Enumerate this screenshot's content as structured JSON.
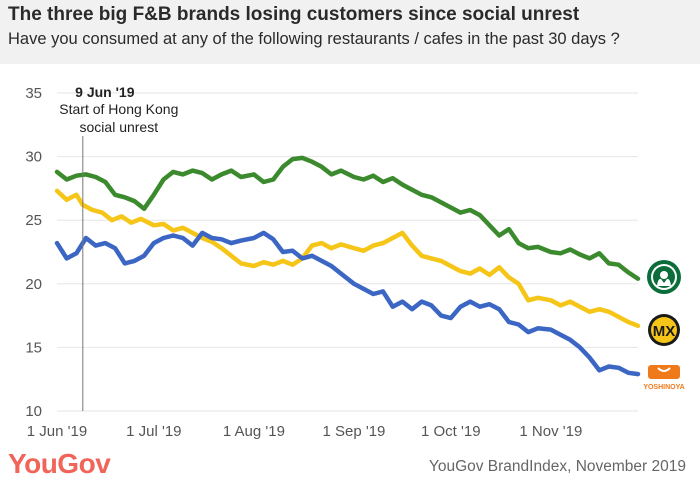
{
  "header": {
    "title": "The three big F&B brands losing customers since social unrest",
    "subtitle": "Have you consumed at any of the following restaurants / cafes in the past 30 days ?"
  },
  "footer": {
    "logo": "YouGov",
    "source": "YouGov BrandIndex, November 2019"
  },
  "annotation": {
    "date": "9 Jun '19",
    "line1": "Start of Hong Kong",
    "line2": "social unrest",
    "x": "2019-06-09"
  },
  "chart_data": {
    "type": "line",
    "title": "",
    "xlabel": "",
    "ylabel": "",
    "ylim": [
      10,
      35
    ],
    "yticks": [
      10,
      15,
      20,
      25,
      30,
      35
    ],
    "xlim": [
      "2019-06-01",
      "2019-11-28"
    ],
    "xticks": [
      {
        "date": "2019-06-01",
        "label": "1 Jun '19"
      },
      {
        "date": "2019-07-01",
        "label": "1 Jul '19"
      },
      {
        "date": "2019-08-01",
        "label": "1 Aug '19"
      },
      {
        "date": "2019-09-01",
        "label": "1 Sep '19"
      },
      {
        "date": "2019-10-01",
        "label": "1 Oct '19"
      },
      {
        "date": "2019-11-01",
        "label": "1 Nov '19"
      }
    ],
    "grid": "horizontal",
    "series": [
      {
        "brand_icon": "starbucks-logo-icon",
        "color": "#3c8a2e",
        "points": [
          [
            "2019-06-01",
            28.8
          ],
          [
            "2019-06-04",
            28.2
          ],
          [
            "2019-06-07",
            28.5
          ],
          [
            "2019-06-10",
            28.6
          ],
          [
            "2019-06-13",
            28.4
          ],
          [
            "2019-06-16",
            28.0
          ],
          [
            "2019-06-19",
            27.0
          ],
          [
            "2019-06-22",
            26.8
          ],
          [
            "2019-06-25",
            26.5
          ],
          [
            "2019-06-28",
            25.9
          ],
          [
            "2019-07-01",
            27.0
          ],
          [
            "2019-07-04",
            28.2
          ],
          [
            "2019-07-07",
            28.8
          ],
          [
            "2019-07-10",
            28.6
          ],
          [
            "2019-07-13",
            28.9
          ],
          [
            "2019-07-16",
            28.7
          ],
          [
            "2019-07-19",
            28.2
          ],
          [
            "2019-07-22",
            28.6
          ],
          [
            "2019-07-25",
            28.9
          ],
          [
            "2019-07-28",
            28.4
          ],
          [
            "2019-08-01",
            28.6
          ],
          [
            "2019-08-04",
            28.0
          ],
          [
            "2019-08-07",
            28.2
          ],
          [
            "2019-08-10",
            29.2
          ],
          [
            "2019-08-13",
            29.8
          ],
          [
            "2019-08-16",
            29.9
          ],
          [
            "2019-08-19",
            29.6
          ],
          [
            "2019-08-22",
            29.2
          ],
          [
            "2019-08-25",
            28.6
          ],
          [
            "2019-08-28",
            28.9
          ],
          [
            "2019-09-01",
            28.4
          ],
          [
            "2019-09-04",
            28.2
          ],
          [
            "2019-09-07",
            28.5
          ],
          [
            "2019-09-10",
            28.0
          ],
          [
            "2019-09-13",
            28.3
          ],
          [
            "2019-09-16",
            27.8
          ],
          [
            "2019-09-19",
            27.4
          ],
          [
            "2019-09-22",
            27.0
          ],
          [
            "2019-09-25",
            26.8
          ],
          [
            "2019-09-28",
            26.4
          ],
          [
            "2019-10-01",
            26.0
          ],
          [
            "2019-10-04",
            25.6
          ],
          [
            "2019-10-07",
            25.8
          ],
          [
            "2019-10-10",
            25.4
          ],
          [
            "2019-10-13",
            24.6
          ],
          [
            "2019-10-16",
            23.8
          ],
          [
            "2019-10-19",
            24.3
          ],
          [
            "2019-10-22",
            23.2
          ],
          [
            "2019-10-25",
            22.8
          ],
          [
            "2019-10-28",
            22.9
          ],
          [
            "2019-11-01",
            22.5
          ],
          [
            "2019-11-04",
            22.4
          ],
          [
            "2019-11-07",
            22.7
          ],
          [
            "2019-11-10",
            22.3
          ],
          [
            "2019-11-13",
            22.0
          ],
          [
            "2019-11-16",
            22.4
          ],
          [
            "2019-11-19",
            21.6
          ],
          [
            "2019-11-22",
            21.5
          ],
          [
            "2019-11-25",
            20.9
          ],
          [
            "2019-11-28",
            20.4
          ]
        ]
      },
      {
        "brand_icon": "mx-logo-icon",
        "color": "#f5c518",
        "points": [
          [
            "2019-06-01",
            27.3
          ],
          [
            "2019-06-04",
            26.6
          ],
          [
            "2019-06-07",
            27.0
          ],
          [
            "2019-06-09",
            26.2
          ],
          [
            "2019-06-12",
            25.8
          ],
          [
            "2019-06-15",
            25.6
          ],
          [
            "2019-06-18",
            25.0
          ],
          [
            "2019-06-21",
            25.3
          ],
          [
            "2019-06-24",
            24.8
          ],
          [
            "2019-06-27",
            25.1
          ],
          [
            "2019-07-01",
            24.6
          ],
          [
            "2019-07-04",
            24.7
          ],
          [
            "2019-07-07",
            24.2
          ],
          [
            "2019-07-10",
            24.4
          ],
          [
            "2019-07-13",
            24.0
          ],
          [
            "2019-07-16",
            23.6
          ],
          [
            "2019-07-19",
            23.3
          ],
          [
            "2019-07-22",
            22.8
          ],
          [
            "2019-07-25",
            22.2
          ],
          [
            "2019-07-28",
            21.6
          ],
          [
            "2019-08-01",
            21.4
          ],
          [
            "2019-08-04",
            21.7
          ],
          [
            "2019-08-07",
            21.5
          ],
          [
            "2019-08-10",
            21.8
          ],
          [
            "2019-08-13",
            21.5
          ],
          [
            "2019-08-16",
            22.0
          ],
          [
            "2019-08-19",
            23.0
          ],
          [
            "2019-08-22",
            23.2
          ],
          [
            "2019-08-25",
            22.8
          ],
          [
            "2019-08-28",
            23.1
          ],
          [
            "2019-09-01",
            22.8
          ],
          [
            "2019-09-04",
            22.6
          ],
          [
            "2019-09-07",
            23.0
          ],
          [
            "2019-09-10",
            23.2
          ],
          [
            "2019-09-13",
            23.6
          ],
          [
            "2019-09-16",
            24.0
          ],
          [
            "2019-09-19",
            23.0
          ],
          [
            "2019-09-22",
            22.2
          ],
          [
            "2019-09-25",
            22.0
          ],
          [
            "2019-09-28",
            21.8
          ],
          [
            "2019-10-01",
            21.4
          ],
          [
            "2019-10-04",
            21.0
          ],
          [
            "2019-10-07",
            20.8
          ],
          [
            "2019-10-10",
            21.2
          ],
          [
            "2019-10-13",
            20.7
          ],
          [
            "2019-10-16",
            21.3
          ],
          [
            "2019-10-19",
            20.5
          ],
          [
            "2019-10-22",
            20.0
          ],
          [
            "2019-10-25",
            18.7
          ],
          [
            "2019-10-28",
            18.9
          ],
          [
            "2019-11-01",
            18.7
          ],
          [
            "2019-11-04",
            18.3
          ],
          [
            "2019-11-07",
            18.6
          ],
          [
            "2019-11-10",
            18.2
          ],
          [
            "2019-11-13",
            17.8
          ],
          [
            "2019-11-16",
            18.0
          ],
          [
            "2019-11-19",
            17.8
          ],
          [
            "2019-11-22",
            17.4
          ],
          [
            "2019-11-25",
            17.0
          ],
          [
            "2019-11-28",
            16.7
          ]
        ]
      },
      {
        "brand_icon": "yoshinoya-logo-icon",
        "color": "#3b66c4",
        "points": [
          [
            "2019-06-01",
            23.2
          ],
          [
            "2019-06-04",
            22.0
          ],
          [
            "2019-06-07",
            22.4
          ],
          [
            "2019-06-10",
            23.6
          ],
          [
            "2019-06-13",
            23.0
          ],
          [
            "2019-06-16",
            23.2
          ],
          [
            "2019-06-19",
            22.8
          ],
          [
            "2019-06-22",
            21.6
          ],
          [
            "2019-06-25",
            21.8
          ],
          [
            "2019-06-28",
            22.2
          ],
          [
            "2019-07-01",
            23.2
          ],
          [
            "2019-07-04",
            23.6
          ],
          [
            "2019-07-07",
            23.8
          ],
          [
            "2019-07-10",
            23.6
          ],
          [
            "2019-07-13",
            23.0
          ],
          [
            "2019-07-16",
            24.0
          ],
          [
            "2019-07-19",
            23.6
          ],
          [
            "2019-07-22",
            23.5
          ],
          [
            "2019-07-25",
            23.2
          ],
          [
            "2019-07-28",
            23.4
          ],
          [
            "2019-08-01",
            23.6
          ],
          [
            "2019-08-04",
            24.0
          ],
          [
            "2019-08-07",
            23.5
          ],
          [
            "2019-08-10",
            22.5
          ],
          [
            "2019-08-13",
            22.6
          ],
          [
            "2019-08-16",
            22.0
          ],
          [
            "2019-08-19",
            22.2
          ],
          [
            "2019-08-22",
            21.8
          ],
          [
            "2019-08-25",
            21.4
          ],
          [
            "2019-08-28",
            20.8
          ],
          [
            "2019-09-01",
            20.0
          ],
          [
            "2019-09-04",
            19.6
          ],
          [
            "2019-09-07",
            19.2
          ],
          [
            "2019-09-10",
            19.4
          ],
          [
            "2019-09-13",
            18.2
          ],
          [
            "2019-09-16",
            18.6
          ],
          [
            "2019-09-19",
            18.0
          ],
          [
            "2019-09-22",
            18.6
          ],
          [
            "2019-09-25",
            18.3
          ],
          [
            "2019-09-28",
            17.5
          ],
          [
            "2019-10-01",
            17.3
          ],
          [
            "2019-10-04",
            18.2
          ],
          [
            "2019-10-07",
            18.6
          ],
          [
            "2019-10-10",
            18.2
          ],
          [
            "2019-10-13",
            18.4
          ],
          [
            "2019-10-16",
            18.0
          ],
          [
            "2019-10-19",
            17.0
          ],
          [
            "2019-10-22",
            16.8
          ],
          [
            "2019-10-25",
            16.2
          ],
          [
            "2019-10-28",
            16.5
          ],
          [
            "2019-11-01",
            16.4
          ],
          [
            "2019-11-04",
            16.0
          ],
          [
            "2019-11-07",
            15.6
          ],
          [
            "2019-11-10",
            15.0
          ],
          [
            "2019-11-13",
            14.2
          ],
          [
            "2019-11-16",
            13.2
          ],
          [
            "2019-11-19",
            13.5
          ],
          [
            "2019-11-22",
            13.4
          ],
          [
            "2019-11-25",
            13.0
          ],
          [
            "2019-11-28",
            12.9
          ]
        ]
      }
    ]
  }
}
